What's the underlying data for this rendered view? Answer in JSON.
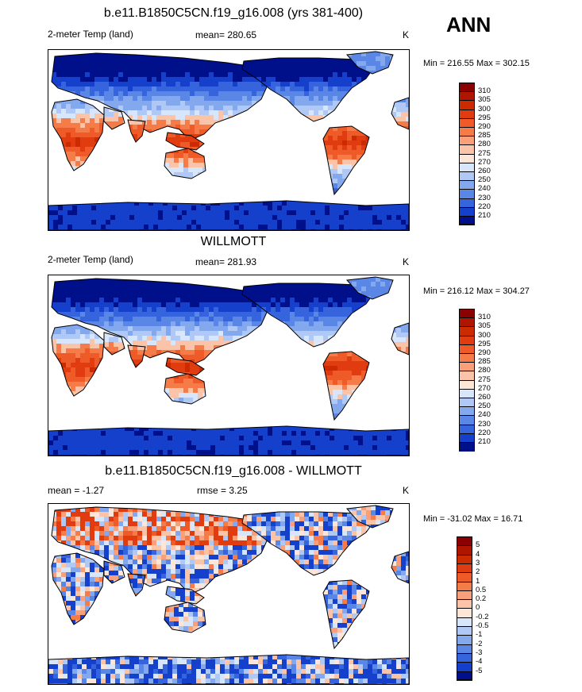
{
  "season": "ANN",
  "panels": [
    {
      "id": "model",
      "title": "b.e11.B1850C5CN.f19_g16.008 (yrs 381-400)",
      "left_label": "2-meter Temp (land)",
      "center_label": "mean= 280.65",
      "right_label": "K",
      "minmax": "Min = 216.55 Max = 302.15",
      "colorbar": {
        "labels": [
          "310",
          "305",
          "300",
          "295",
          "290",
          "285",
          "280",
          "275",
          "270",
          "260",
          "250",
          "240",
          "230",
          "220",
          "210"
        ],
        "colors": [
          "#8b0000",
          "#b01500",
          "#cc2a00",
          "#e03c10",
          "#ee5a28",
          "#f57c48",
          "#f9a07a",
          "#fbc4a8",
          "#fde6d8",
          "#d8e6fb",
          "#b0c8f5",
          "#84a8ee",
          "#5a86e6",
          "#3564dc",
          "#1440cc",
          "#00108a"
        ]
      }
    },
    {
      "id": "obs",
      "title": "WILLMOTT",
      "left_label": "2-meter Temp (land)",
      "center_label": "mean= 281.93",
      "right_label": "K",
      "minmax": "Min = 216.12 Max = 304.27",
      "colorbar": {
        "labels": [
          "310",
          "305",
          "300",
          "295",
          "290",
          "285",
          "280",
          "275",
          "270",
          "260",
          "250",
          "240",
          "230",
          "220",
          "210"
        ],
        "colors": [
          "#8b0000",
          "#b01500",
          "#cc2a00",
          "#e03c10",
          "#ee5a28",
          "#f57c48",
          "#f9a07a",
          "#fbc4a8",
          "#fde6d8",
          "#d8e6fb",
          "#b0c8f5",
          "#84a8ee",
          "#5a86e6",
          "#3564dc",
          "#1440cc",
          "#00108a"
        ]
      }
    },
    {
      "id": "diff",
      "title": "b.e11.B1850C5CN.f19_g16.008 - WILLMOTT",
      "left_label": "mean =  -1.27",
      "center_label": "rmse =    3.25",
      "right_label": "K",
      "minmax": "Min = -31.02 Max =  16.71",
      "colorbar": {
        "labels": [
          "5",
          "4",
          "3",
          "2",
          "1",
          "0.5",
          "0.2",
          "0",
          "-0.2",
          "-0.5",
          "-1",
          "-2",
          "-3",
          "-4",
          "-5"
        ],
        "colors": [
          "#8b0000",
          "#b01500",
          "#cc2a00",
          "#e03c10",
          "#ee5a28",
          "#f57c48",
          "#f9a07a",
          "#fbc4a8",
          "#fde6d8",
          "#d8e6fb",
          "#b0c8f5",
          "#84a8ee",
          "#5a86e6",
          "#3564dc",
          "#1440cc",
          "#00108a"
        ]
      }
    }
  ]
}
